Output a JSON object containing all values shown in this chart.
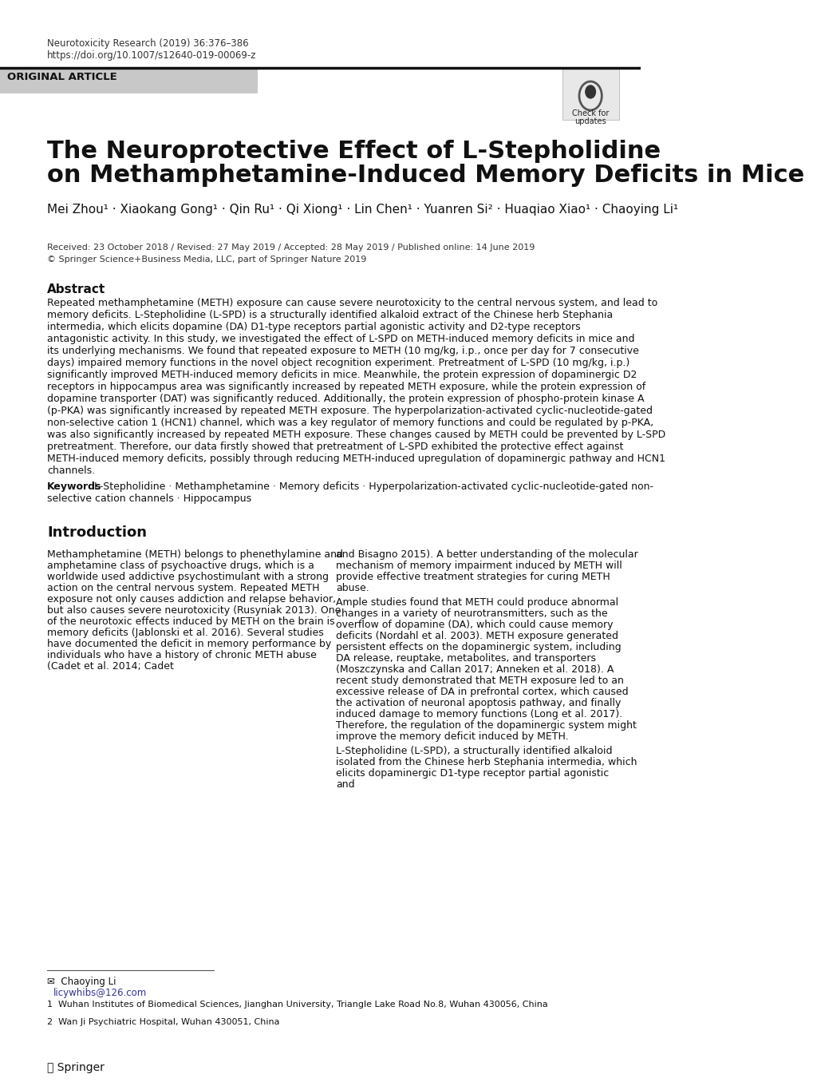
{
  "journal_line1": "Neurotoxicity Research (2019) 36:376–386",
  "journal_line2": "https://doi.org/10.1007/s12640-019-00069-z",
  "section_label": "ORIGINAL ARTICLE",
  "title_line1": "The Neuroprotective Effect of L-Stepholidine",
  "title_line2": "on Methamphetamine-Induced Memory Deficits in Mice",
  "authors": "Mei Zhou¹ · Xiaokang Gong¹ · Qin Ru¹ · Qi Xiong¹ · Lin Chen¹ · Yuanren Si² · Huaqiao Xiao¹ · Chaoying Li¹",
  "received": "Received: 23 October 2018 / Revised: 27 May 2019 / Accepted: 28 May 2019 / Published online: 14 June 2019",
  "copyright": "© Springer Science+Business Media, LLC, part of Springer Nature 2019",
  "abstract_title": "Abstract",
  "abstract_text": "Repeated methamphetamine (METH) exposure can cause severe neurotoxicity to the central nervous system, and lead to memory deficits. L-Stepholidine (L-SPD) is a structurally identified alkaloid extract of the Chinese herb Stephania intermedia, which elicits dopamine (DA) D1-type receptors partial agonistic activity and D2-type receptors antagonistic activity. In this study, we investigated the effect of L-SPD on METH-induced memory deficits in mice and its underlying mechanisms. We found that repeated exposure to METH (10 mg/kg, i.p., once per day for 7 consecutive days) impaired memory functions in the novel object recognition experiment. Pretreatment of L-SPD (10 mg/kg, i.p.) significantly improved METH-induced memory deficits in mice. Meanwhile, the protein expression of dopaminergic D2 receptors in hippocampus area was significantly increased by repeated METH exposure, while the protein expression of dopamine transporter (DAT) was significantly reduced. Additionally, the protein expression of phospho-protein kinase A (p-PKA) was significantly increased by repeated METH exposure. The hyperpolarization-activated cyclic-nucleotide-gated non-selective cation 1 (HCN1) channel, which was a key regulator of memory functions and could be regulated by p-PKA, was also significantly increased by repeated METH exposure. These changes caused by METH could be prevented by L-SPD pretreatment. Therefore, our data firstly showed that pretreatment of L-SPD exhibited the protective effect against METH-induced memory deficits, possibly through reducing METH-induced upregulation of dopaminergic pathway and HCN1 channels.",
  "keywords_label": "Keywords",
  "keywords_text": "L-Stepholidine · Methamphetamine · Memory deficits · Hyperpolarization-activated cyclic-nucleotide-gated non-selective cation channels · Hippocampus",
  "intro_title": "Introduction",
  "intro_left": "Methamphetamine (METH) belongs to phenethylamine and amphetamine class of psychoactive drugs, which is a worldwide used addictive psychostimulant with a strong action on the central nervous system. Repeated METH exposure not only causes addiction and relapse behavior, but also causes severe neurotoxicity (Rusyniak 2013). One of the neurotoxic effects induced by METH on the brain is memory deficits (Jablonski et al. 2016). Several studies have documented the deficit in memory performance by individuals who have a history of chronic METH abuse (Cadet et al. 2014; Cadet",
  "intro_right": "and Bisagno 2015). A better understanding of the molecular mechanism of memory impairment induced by METH will provide effective treatment strategies for curing METH abuse.\n    Ample studies found that METH could produce abnormal changes in a variety of neurotransmitters, such as the overflow of dopamine (DA), which could cause memory deficits (Nordahl et al. 2003). METH exposure generated persistent effects on the dopaminergic system, including DA release, reuptake, metabolites, and transporters (Moszczynska and Callan 2017; Anneken et al. 2018). A recent study demonstrated that METH exposure led to an excessive release of DA in prefrontal cortex, which caused the activation of neuronal apoptosis pathway, and finally induced damage to memory functions (Long et al. 2017). Therefore, the regulation of the dopaminergic system might improve the memory deficit induced by METH.\n    L-Stepholidine (L-SPD), a structurally identified alkaloid isolated from the Chinese herb Stephania intermedia, which elicits dopaminergic D1-type receptor partial agonistic and",
  "footnote_email_label": "Chaoying Li",
  "footnote_email": "licywhibs@126.com",
  "footnote1": "Wuhan Institutes of Biomedical Sciences, Jianghan University, Triangle Lake Road No.8, Wuhan 430056, China",
  "footnote2": "Wan Ji Psychiatric Hospital, Wuhan 430051, China",
  "springer_text": "Springer",
  "bg_color": "#ffffff",
  "text_color": "#000000",
  "gray_bar_color": "#c8c8c8",
  "header_line_color": "#1a1a1a"
}
